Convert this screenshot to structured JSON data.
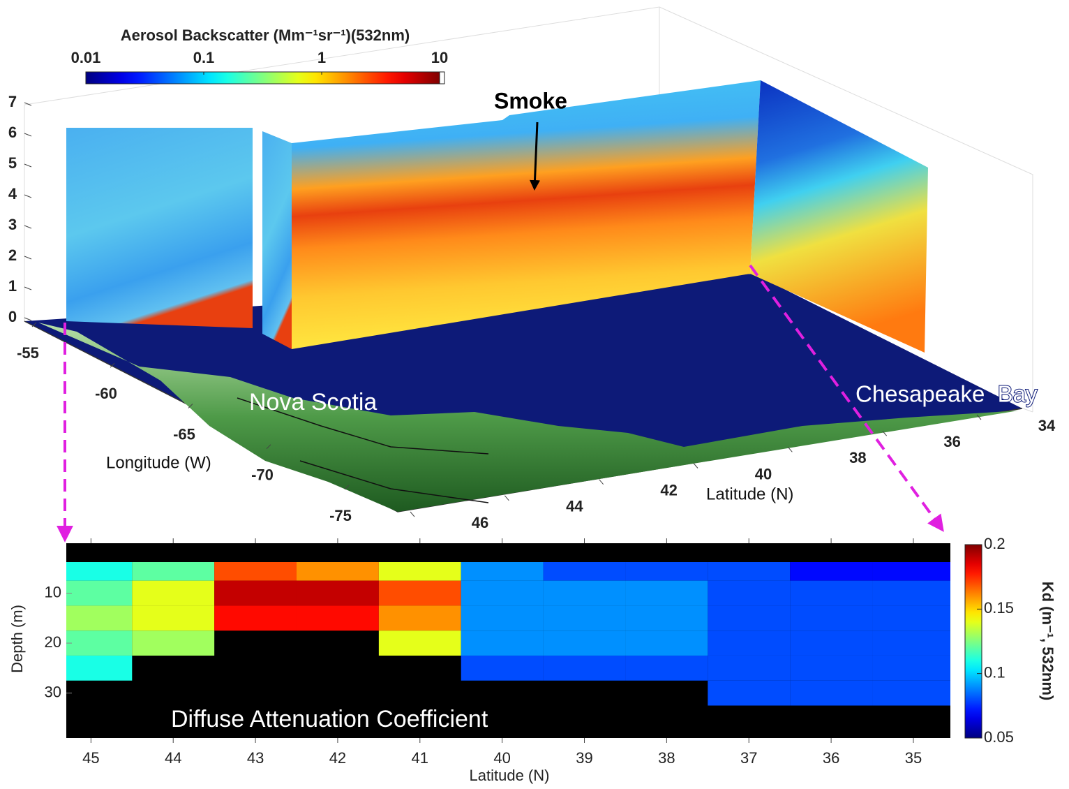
{
  "chart_data": [
    {
      "type": "curtain3d",
      "title": "Aerosol Backscatter (Mm⁻¹sr⁻¹)(532nm)",
      "colorbar": {
        "lim": [
          0.01,
          10
        ],
        "ticks": [
          0.01,
          0.1,
          1,
          10
        ],
        "log": true,
        "colormap": "jet"
      },
      "xlabel": "Longitude (W)",
      "ylabel": "Latitude (N)",
      "xlim": [
        -55,
        -75
      ],
      "xticks": [
        -55,
        -60,
        -65,
        -70,
        -75
      ],
      "ylim": [
        46,
        34
      ],
      "yticks": [
        46,
        44,
        42,
        40,
        38,
        36,
        34
      ],
      "zlim": [
        0,
        7
      ],
      "zticks": [
        0,
        1,
        2,
        3,
        4,
        5,
        6,
        7
      ],
      "annotations": [
        "Smoke",
        "Nova Scotia",
        "Chesapeake  Bay"
      ]
    },
    {
      "type": "heatmap",
      "annotation": "Diffuse Attenuation Coefficient",
      "xlabel": "Latitude (N)",
      "ylabel": "Depth (m)",
      "xlim": [
        45.3,
        34.55
      ],
      "xticks": [
        45,
        44,
        43,
        42,
        41,
        40,
        39,
        38,
        37,
        36,
        35
      ],
      "ylim": [
        0,
        39
      ],
      "yticks": [
        10,
        20,
        30
      ],
      "x": [
        45,
        44,
        43,
        42,
        41,
        40,
        39,
        38,
        37,
        36,
        35
      ],
      "y": [
        5,
        10,
        15,
        20,
        25,
        30
      ],
      "values": [
        [
          0.11,
          0.12,
          0.17,
          0.16,
          0.14,
          0.09,
          0.08,
          0.08,
          0.08,
          0.07,
          0.07
        ],
        [
          0.12,
          0.14,
          0.19,
          0.19,
          0.17,
          0.09,
          0.09,
          0.09,
          0.08,
          0.08,
          0.08
        ],
        [
          0.13,
          0.14,
          0.18,
          0.18,
          0.16,
          0.09,
          0.09,
          0.09,
          0.08,
          0.08,
          0.08
        ],
        [
          0.12,
          0.13,
          null,
          null,
          0.14,
          0.09,
          0.09,
          0.09,
          0.08,
          0.08,
          0.08
        ],
        [
          0.11,
          null,
          null,
          null,
          null,
          0.08,
          0.08,
          0.08,
          0.08,
          0.08,
          0.08
        ],
        [
          null,
          null,
          null,
          null,
          null,
          null,
          null,
          null,
          0.08,
          0.08,
          0.08
        ]
      ],
      "colorbar": {
        "label": "Kd (m⁻¹, 532nm)",
        "lim": [
          0.05,
          0.2
        ],
        "ticks": [
          0.2,
          0.15,
          0.1,
          0.05
        ],
        "colormap": "jet"
      }
    }
  ]
}
